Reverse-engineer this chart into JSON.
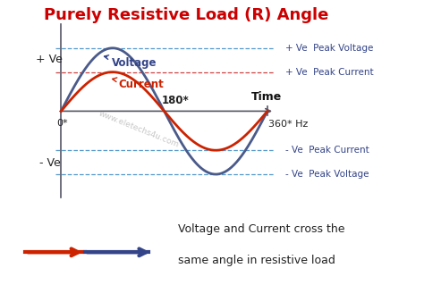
{
  "title": "Purely Resistive Load (R) Angle",
  "title_color": "#cc0000",
  "title_fontsize": 13,
  "background_color": "#ffffff",
  "voltage_color": "#4a5a8a",
  "current_color": "#cc2200",
  "voltage_amplitude": 1.0,
  "current_amplitude": 0.62,
  "dashed_color": "#5599cc",
  "dashed_current_color": "#cc4444",
  "label_voltage": "Voltage",
  "label_current": "Current",
  "label_0": "0*",
  "label_180": "180*",
  "label_360": "360* Hz",
  "label_time": "Time",
  "label_plus_ve": "+ Ve",
  "label_minus_ve": "- Ve",
  "label_plus_peak_voltage": "+ Ve  Peak Voltage",
  "label_plus_peak_current": "+ Ve  Peak Current",
  "label_minus_peak_current": "- Ve  Peak Current",
  "label_minus_peak_voltage": "- Ve  Peak Voltage",
  "watermark": "www.eletechs4u.com",
  "bottom_text_line1": "Voltage and Current cross the",
  "bottom_text_line2": "same angle in resistive load",
  "voltage_label_color": "#334488",
  "current_label_color": "#cc2200",
  "side_label_color": "#334488",
  "axis_color": "#555566",
  "ylim_low": -1.4,
  "ylim_high": 1.4
}
